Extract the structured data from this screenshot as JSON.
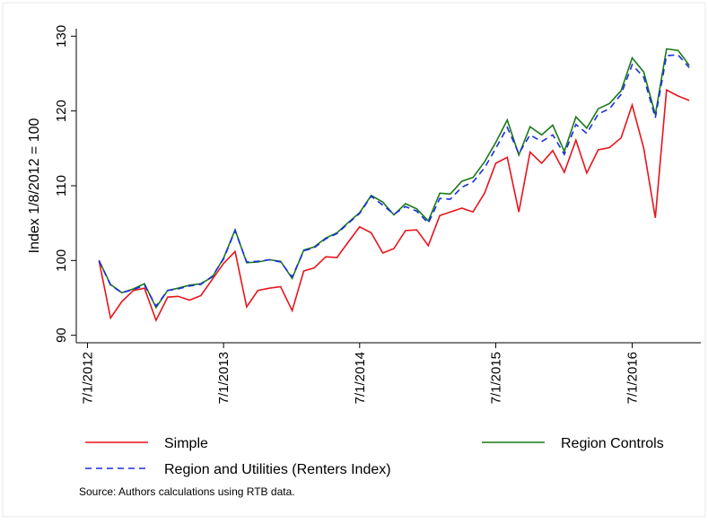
{
  "chart_data": {
    "type": "line",
    "ylabel": "Index 1/8/2012 = 100",
    "source": "Source: Authors calculations using RTB data.",
    "x": [
      "8/1/2012",
      "9/1/2012",
      "10/1/2012",
      "11/1/2012",
      "12/1/2012",
      "1/1/2013",
      "2/1/2013",
      "3/1/2013",
      "4/1/2013",
      "5/1/2013",
      "6/1/2013",
      "7/1/2013",
      "8/1/2013",
      "9/1/2013",
      "10/1/2013",
      "11/1/2013",
      "12/1/2013",
      "1/1/2014",
      "2/1/2014",
      "3/1/2014",
      "4/1/2014",
      "5/1/2014",
      "6/1/2014",
      "7/1/2014",
      "8/1/2014",
      "9/1/2014",
      "10/1/2014",
      "11/1/2014",
      "12/1/2014",
      "1/1/2015",
      "2/1/2015",
      "3/1/2015",
      "4/1/2015",
      "5/1/2015",
      "6/1/2015",
      "7/1/2015",
      "8/1/2015",
      "9/1/2015",
      "10/1/2015",
      "11/1/2015",
      "12/1/2015",
      "1/1/2016",
      "2/1/2016",
      "3/1/2016",
      "4/1/2016",
      "5/1/2016",
      "6/1/2016",
      "7/1/2016",
      "8/1/2016",
      "9/1/2016",
      "10/1/2016",
      "11/1/2016",
      "12/1/2016"
    ],
    "series": [
      {
        "name": "Simple",
        "color": "#e8141c",
        "style": "solid",
        "values": [
          100,
          92.3,
          94.5,
          96,
          96.3,
          92,
          95.1,
          95.2,
          94.7,
          95.3,
          97.5,
          99.6,
          101.2,
          93.8,
          96,
          96.3,
          96.5,
          93.3,
          98.6,
          99,
          100.5,
          100.4,
          102.5,
          104.5,
          103.7,
          101,
          101.6,
          104,
          104.1,
          102,
          106,
          106.5,
          107,
          106.5,
          109,
          113,
          113.8,
          106.5,
          114.5,
          113,
          114.7,
          111.8,
          116.1,
          111.7,
          114.8,
          115.1,
          116.4,
          120.8,
          115,
          105.7,
          122.8,
          122,
          121.4
        ]
      },
      {
        "name": "Region Controls",
        "color": "#1a7a1a",
        "style": "solid",
        "values": [
          100,
          96.8,
          95.7,
          96.2,
          96.9,
          93.7,
          96,
          96.3,
          96.7,
          96.9,
          97.8,
          100.3,
          104.1,
          99.7,
          99.8,
          100.1,
          99.9,
          97.6,
          101.4,
          101.8,
          103,
          103.7,
          105.1,
          106.4,
          108.7,
          107.8,
          106.1,
          107.6,
          106.9,
          105.3,
          109,
          108.9,
          110.6,
          111.1,
          113.2,
          115.8,
          118.8,
          114.1,
          117.9,
          116.8,
          118.1,
          114.6,
          119.2,
          117.7,
          120.3,
          121,
          122.7,
          127.1,
          125.2,
          119.5,
          128.3,
          128.1,
          126.1
        ]
      },
      {
        "name": "Region and Utilities (Renters Index)",
        "color": "#1a2ee0",
        "style": "dashed",
        "values": [
          100,
          96.7,
          95.7,
          96.1,
          96.7,
          93.9,
          96,
          96.2,
          96.6,
          96.8,
          97.9,
          100.2,
          104,
          99.8,
          99.9,
          100.1,
          99.8,
          97.8,
          101.3,
          101.7,
          102.9,
          103.6,
          105,
          106.3,
          108.6,
          107.4,
          106.2,
          107.2,
          106.6,
          105,
          108.3,
          108.2,
          109.8,
          110.5,
          112.4,
          115,
          117.8,
          114.3,
          116.8,
          115.9,
          116.8,
          114.2,
          118.2,
          117,
          119.6,
          120.3,
          122.2,
          126.2,
          124.5,
          119.1,
          127.4,
          127.5,
          125.8
        ]
      }
    ],
    "xlim": [
      "6/1/2012",
      "1/1/2017"
    ],
    "xticks": [
      "7/1/2012",
      "7/1/2013",
      "7/1/2014",
      "7/1/2015",
      "7/1/2016"
    ],
    "ylim": [
      89,
      131
    ],
    "yticks": [
      90,
      100,
      110,
      120,
      130
    ],
    "grid": false
  }
}
